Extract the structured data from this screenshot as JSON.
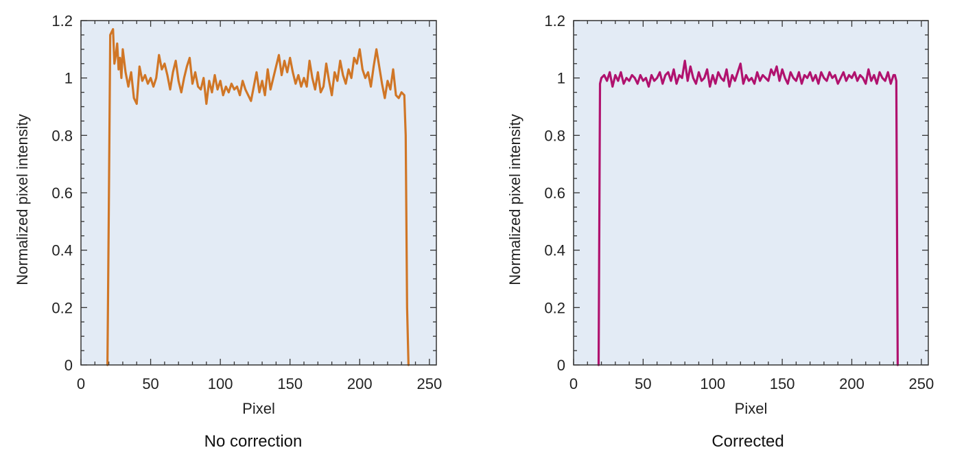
{
  "chart_data": [
    {
      "type": "line",
      "caption": "No correction",
      "xlabel": "Pixel",
      "ylabel": "Normalized pixel intensity",
      "xlim": [
        0,
        255
      ],
      "ylim": [
        0,
        1.2
      ],
      "xticks": [
        0,
        50,
        100,
        150,
        200,
        250
      ],
      "yticks": [
        0,
        0.2,
        0.4,
        0.6,
        0.8,
        1,
        1.2
      ],
      "xtick_labels": [
        "0",
        "50",
        "100",
        "150",
        "200",
        "250"
      ],
      "ytick_labels": [
        "0",
        "0.2",
        "0.4",
        "0.6",
        "0.8",
        "1",
        "1.2"
      ],
      "grid": false,
      "plot_background": "#e3ebf5",
      "series": [
        {
          "color": "#d07626",
          "x": [
            19,
            20,
            21,
            22,
            23,
            24,
            25,
            26,
            27,
            28,
            29,
            30,
            32,
            34,
            36,
            38,
            40,
            42,
            44,
            46,
            48,
            50,
            52,
            54,
            56,
            58,
            60,
            62,
            64,
            66,
            68,
            70,
            72,
            74,
            76,
            78,
            80,
            82,
            84,
            86,
            88,
            90,
            92,
            94,
            96,
            98,
            100,
            102,
            104,
            106,
            108,
            110,
            112,
            114,
            116,
            118,
            120,
            122,
            124,
            126,
            128,
            130,
            132,
            134,
            136,
            138,
            140,
            142,
            144,
            146,
            148,
            150,
            152,
            154,
            156,
            158,
            160,
            162,
            164,
            166,
            168,
            170,
            172,
            174,
            176,
            178,
            180,
            182,
            184,
            186,
            188,
            190,
            192,
            194,
            196,
            198,
            200,
            202,
            204,
            206,
            208,
            210,
            212,
            214,
            216,
            218,
            220,
            222,
            224,
            226,
            228,
            230,
            232,
            233,
            234,
            235
          ],
          "y": [
            0,
            0.55,
            1.15,
            1.16,
            1.17,
            1.05,
            1.08,
            1.12,
            1.03,
            1.07,
            1.0,
            1.1,
            1.02,
            0.97,
            1.02,
            0.93,
            0.91,
            1.04,
            0.99,
            1.01,
            0.98,
            1.0,
            0.97,
            1.0,
            1.08,
            1.03,
            1.05,
            1.01,
            0.96,
            1.02,
            1.06,
            0.99,
            0.95,
            1.0,
            1.04,
            1.07,
            0.98,
            1.02,
            0.97,
            0.96,
            1.0,
            0.91,
            0.99,
            0.95,
            1.01,
            0.96,
            0.99,
            0.94,
            0.97,
            0.95,
            0.98,
            0.96,
            0.97,
            0.94,
            0.99,
            0.96,
            0.94,
            0.92,
            0.97,
            1.02,
            0.95,
            0.99,
            0.94,
            1.03,
            0.96,
            1.0,
            1.04,
            1.08,
            1.01,
            1.06,
            1.02,
            1.07,
            1.02,
            0.98,
            1.01,
            0.97,
            1.0,
            0.97,
            1.06,
            1.0,
            0.96,
            1.02,
            0.95,
            0.97,
            1.05,
            0.99,
            0.94,
            1.02,
            0.99,
            1.06,
            1.01,
            0.98,
            1.03,
            1.0,
            1.07,
            1.05,
            1.1,
            1.03,
            1.0,
            1.02,
            0.97,
            1.04,
            1.1,
            1.04,
            0.98,
            0.93,
            0.99,
            0.96,
            1.03,
            0.94,
            0.93,
            0.95,
            0.94,
            0.8,
            0.2,
            0
          ]
        }
      ]
    },
    {
      "type": "line",
      "caption": "Corrected",
      "xlabel": "Pixel",
      "ylabel": "Normalized pixel intensity",
      "xlim": [
        0,
        255
      ],
      "ylim": [
        0,
        1.2
      ],
      "xticks": [
        0,
        50,
        100,
        150,
        200,
        250
      ],
      "yticks": [
        0,
        0.2,
        0.4,
        0.6,
        0.8,
        1,
        1.2
      ],
      "xtick_labels": [
        "0",
        "50",
        "100",
        "150",
        "200",
        "250"
      ],
      "ytick_labels": [
        "0",
        "0.2",
        "0.4",
        "0.6",
        "0.8",
        "1",
        "1.2"
      ],
      "grid": false,
      "plot_background": "#e3ebf5",
      "series": [
        {
          "color": "#b0126e",
          "x": [
            18,
            19,
            20,
            22,
            24,
            26,
            28,
            30,
            32,
            34,
            36,
            38,
            40,
            42,
            44,
            46,
            48,
            50,
            52,
            54,
            56,
            58,
            60,
            62,
            64,
            66,
            68,
            70,
            72,
            74,
            76,
            78,
            80,
            82,
            84,
            86,
            88,
            90,
            92,
            94,
            96,
            98,
            100,
            102,
            104,
            106,
            108,
            110,
            112,
            114,
            116,
            118,
            120,
            122,
            124,
            126,
            128,
            130,
            132,
            134,
            136,
            138,
            140,
            142,
            144,
            146,
            148,
            150,
            152,
            154,
            156,
            158,
            160,
            162,
            164,
            166,
            168,
            170,
            172,
            174,
            176,
            178,
            180,
            182,
            184,
            186,
            188,
            190,
            192,
            194,
            196,
            198,
            200,
            202,
            204,
            206,
            208,
            210,
            212,
            214,
            216,
            218,
            220,
            222,
            224,
            226,
            228,
            230,
            231,
            232,
            233
          ],
          "y": [
            0,
            0.98,
            1.0,
            1.01,
            0.99,
            1.02,
            0.97,
            1.01,
            0.99,
            1.02,
            0.98,
            1.0,
            0.99,
            1.01,
            1.0,
            0.98,
            1.01,
            0.99,
            1.0,
            0.97,
            1.01,
            0.99,
            1.0,
            1.02,
            0.98,
            1.01,
            1.02,
            0.99,
            1.03,
            0.98,
            1.01,
            1.0,
            1.06,
            0.99,
            1.04,
            1.0,
            0.98,
            1.02,
            0.99,
            1.0,
            1.03,
            0.97,
            1.01,
            0.98,
            1.02,
            1.0,
            0.99,
            1.03,
            0.97,
            1.01,
            0.99,
            1.02,
            1.05,
            0.98,
            1.01,
            0.99,
            1.0,
            0.98,
            1.02,
            0.99,
            1.01,
            1.0,
            0.99,
            1.03,
            1.01,
            1.04,
            0.99,
            1.03,
            1.0,
            0.98,
            1.02,
            1.0,
            0.99,
            1.02,
            0.98,
            1.01,
            1.0,
            1.02,
            0.99,
            1.01,
            0.98,
            1.02,
            1.0,
            0.99,
            1.02,
            1.0,
            1.01,
            0.98,
            1.0,
            1.02,
            0.99,
            1.01,
            1.0,
            1.02,
            0.99,
            1.01,
            1.0,
            0.98,
            1.03,
            0.99,
            1.01,
            0.98,
            1.02,
            1.0,
            0.99,
            1.02,
            0.98,
            1.01,
            1.01,
            0.99,
            0
          ]
        }
      ]
    }
  ]
}
